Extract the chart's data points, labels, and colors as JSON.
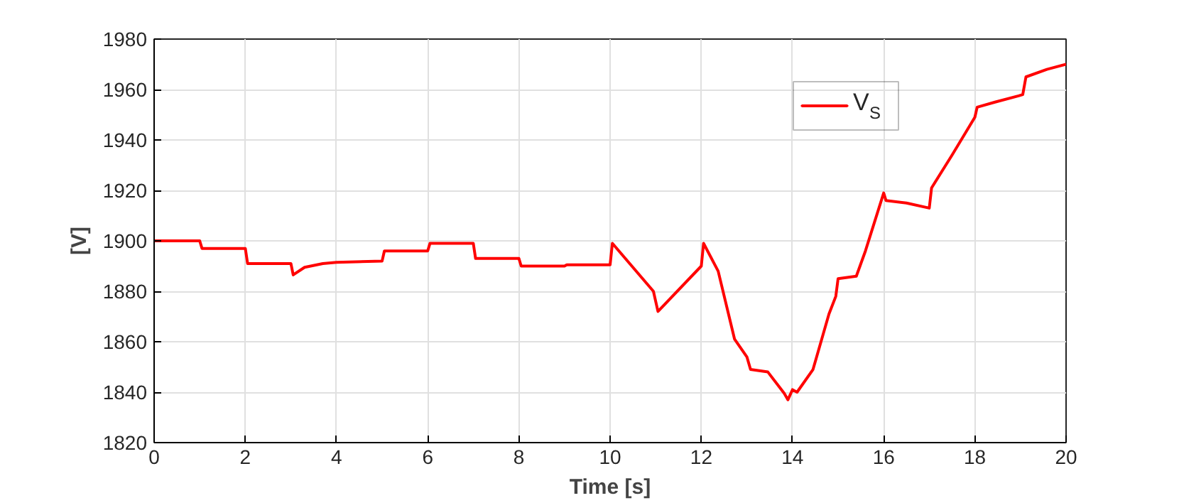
{
  "chart_data": {
    "type": "line",
    "xlabel": "Time [s]",
    "ylabel": "[V]",
    "xlim": [
      0,
      20
    ],
    "ylim": [
      1820,
      1980
    ],
    "xticks": [
      0,
      2,
      4,
      6,
      8,
      10,
      12,
      14,
      16,
      18,
      20
    ],
    "yticks": [
      1820,
      1840,
      1860,
      1880,
      1900,
      1920,
      1940,
      1960,
      1980
    ],
    "grid": true,
    "legend": "top right",
    "line_style": "solid",
    "series": [
      {
        "name": "V$_{S}$",
        "color": "#ff0000",
        "x": [
          0,
          1.0,
          1.05,
          2.0,
          2.05,
          3.0,
          3.05,
          3.3,
          3.7,
          4.0,
          5.0,
          5.05,
          6.0,
          6.05,
          7.0,
          7.05,
          8.0,
          8.05,
          9.0,
          9.05,
          10.0,
          10.05,
          10.95,
          11.05,
          12.0,
          12.05,
          12.37,
          12.73,
          13.0,
          13.08,
          13.46,
          13.82,
          13.9,
          14.0,
          14.1,
          14.45,
          14.8,
          14.95,
          15.0,
          15.4,
          15.6,
          16.0,
          16.05,
          16.5,
          17.0,
          17.05,
          17.5,
          18.0,
          18.05,
          18.44,
          18.96,
          19.05,
          19.12,
          19.58,
          20.0
        ],
        "values": [
          1900,
          1900,
          1897,
          1897,
          1891,
          1891,
          1886.5,
          1889.5,
          1891,
          1891.5,
          1892,
          1896,
          1896,
          1899,
          1899,
          1893,
          1893,
          1890,
          1890,
          1890.5,
          1890.5,
          1899,
          1880,
          1872,
          1890,
          1899,
          1888,
          1861,
          1854,
          1849,
          1848,
          1839.5,
          1837,
          1841,
          1840,
          1849,
          1871,
          1878,
          1885,
          1886,
          1896,
          1919,
          1916,
          1915,
          1913,
          1921,
          1934,
          1949,
          1953,
          1955,
          1957.5,
          1958,
          1965,
          1968,
          1970
        ]
      }
    ]
  }
}
